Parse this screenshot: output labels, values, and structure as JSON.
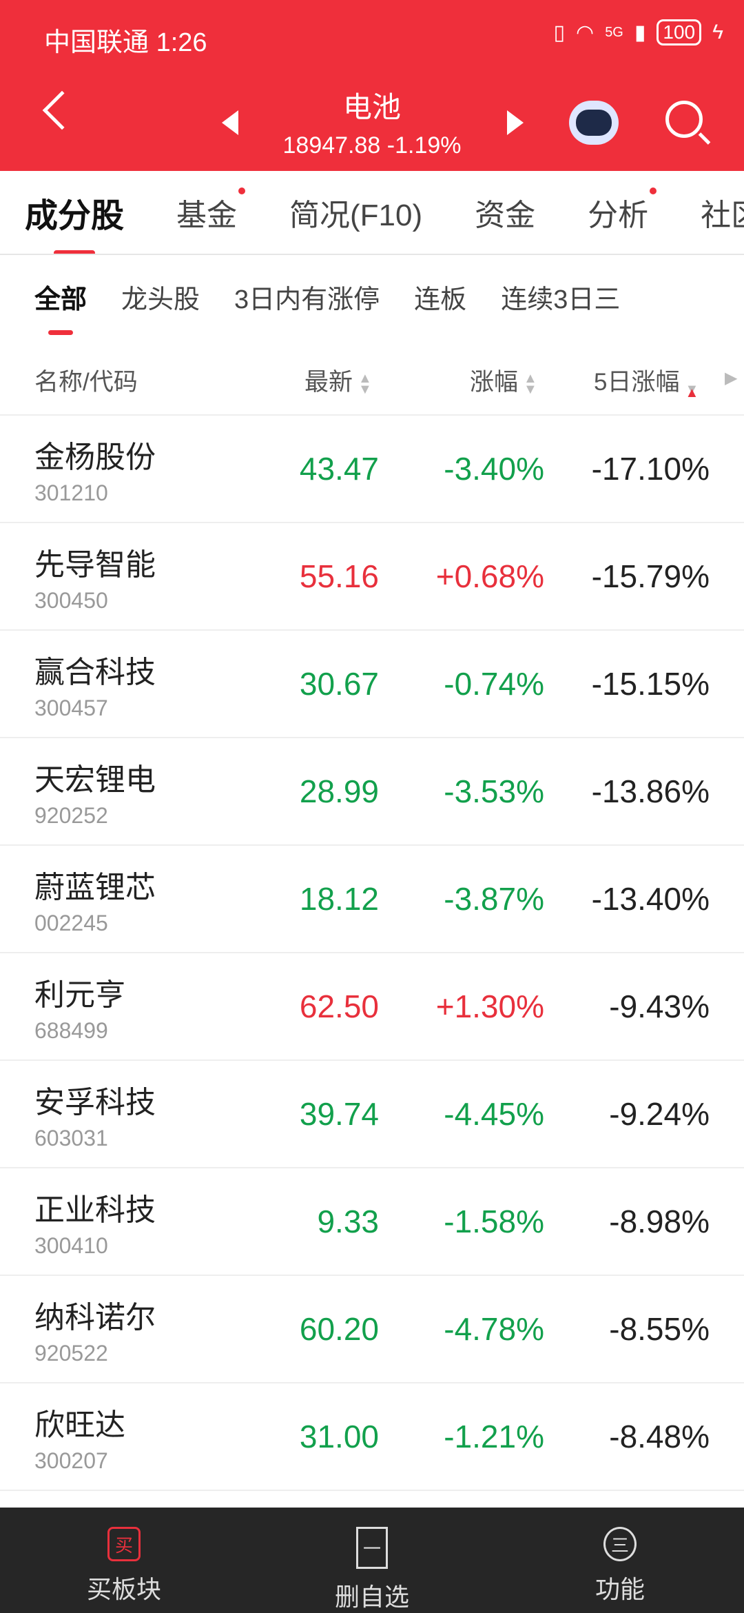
{
  "status_bar": {
    "carrier": "中国联通",
    "time": "1:26",
    "network": "5G",
    "battery": "100"
  },
  "header": {
    "title": "电池",
    "value": "18947.88",
    "change": "-1.19%"
  },
  "tabs": [
    {
      "label": "成分股",
      "active": true
    },
    {
      "label": "基金",
      "dot": true
    },
    {
      "label": "简况(F10)"
    },
    {
      "label": "资金"
    },
    {
      "label": "分析",
      "dot": true
    },
    {
      "label": "社区"
    }
  ],
  "subtabs": [
    "全部",
    "龙头股",
    "3日内有涨停",
    "连板",
    "连续3日三"
  ],
  "columns": {
    "name": "名称/代码",
    "latest": "最新",
    "change": "涨幅",
    "change5d": "5日涨幅"
  },
  "rows": [
    {
      "name": "金杨股份",
      "code": "301210",
      "latest": "43.47",
      "change": "-3.40%",
      "change5d": "-17.10%",
      "dir": "down"
    },
    {
      "name": "先导智能",
      "code": "300450",
      "latest": "55.16",
      "change": "+0.68%",
      "change5d": "-15.79%",
      "dir": "up"
    },
    {
      "name": "赢合科技",
      "code": "300457",
      "latest": "30.67",
      "change": "-0.74%",
      "change5d": "-15.15%",
      "dir": "down"
    },
    {
      "name": "天宏锂电",
      "code": "920252",
      "latest": "28.99",
      "change": "-3.53%",
      "change5d": "-13.86%",
      "dir": "down"
    },
    {
      "name": "蔚蓝锂芯",
      "code": "002245",
      "latest": "18.12",
      "change": "-3.87%",
      "change5d": "-13.40%",
      "dir": "down"
    },
    {
      "name": "利元亨",
      "code": "688499",
      "latest": "62.50",
      "change": "+1.30%",
      "change5d": "-9.43%",
      "dir": "up"
    },
    {
      "name": "安孚科技",
      "code": "603031",
      "latest": "39.74",
      "change": "-4.45%",
      "change5d": "-9.24%",
      "dir": "down"
    },
    {
      "name": "正业科技",
      "code": "300410",
      "latest": "9.33",
      "change": "-1.58%",
      "change5d": "-8.98%",
      "dir": "down"
    },
    {
      "name": "纳科诺尔",
      "code": "920522",
      "latest": "60.20",
      "change": "-4.78%",
      "change5d": "-8.55%",
      "dir": "down"
    },
    {
      "name": "欣旺达",
      "code": "300207",
      "latest": "31.00",
      "change": "-1.21%",
      "change5d": "-8.48%",
      "dir": "down"
    }
  ],
  "bottom_nav": [
    {
      "label": "买板块",
      "icon_text": "买"
    },
    {
      "label": "删自选",
      "icon_text": "一"
    },
    {
      "label": "功能",
      "icon_text": "三"
    }
  ],
  "colors": {
    "brand": "#ef2f3b",
    "up": "#e8303c",
    "down": "#12a04c"
  }
}
